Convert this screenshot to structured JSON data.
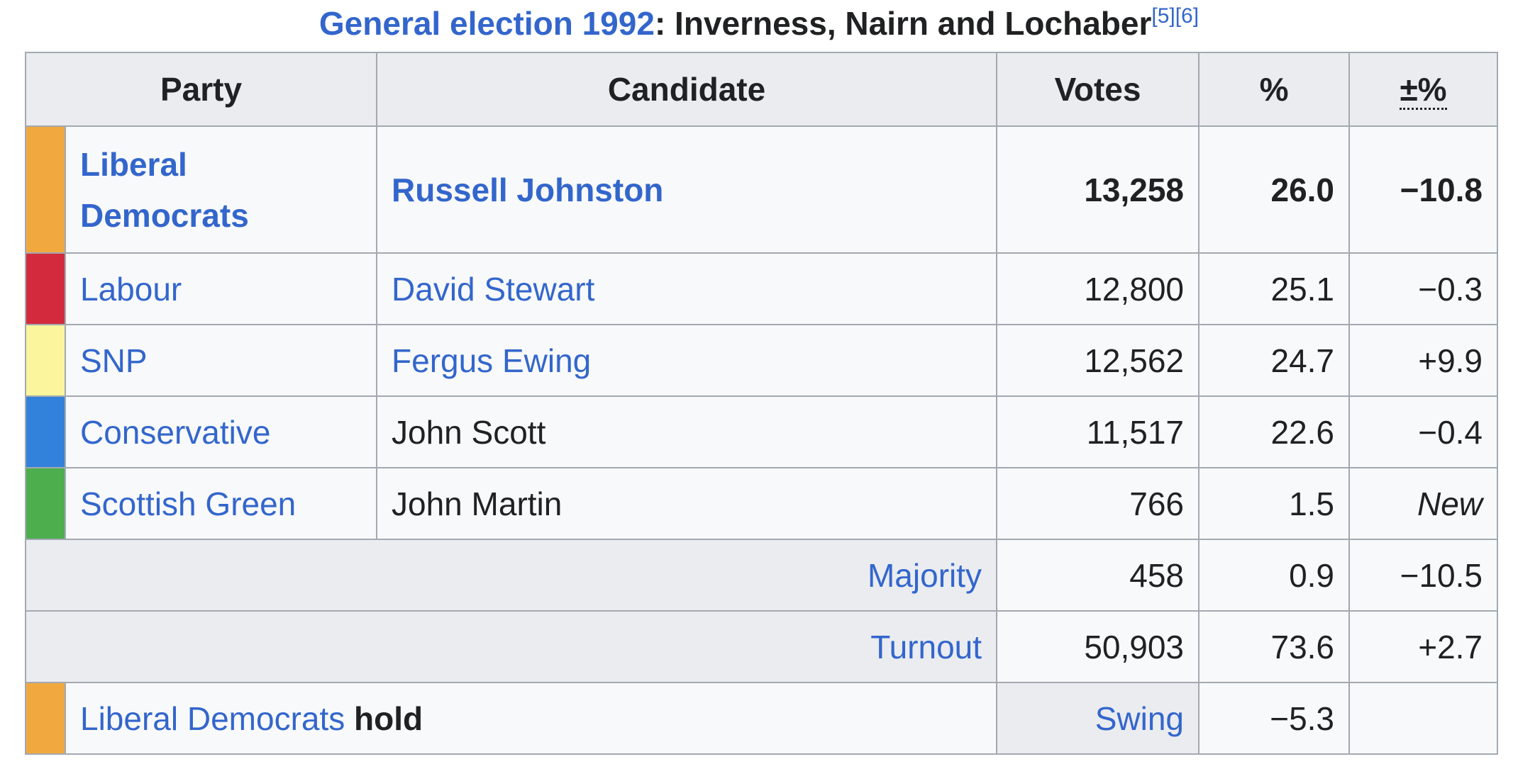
{
  "caption": {
    "link_text": "General election 1992",
    "rest_text": ": Inverness, Nairn and Lochaber",
    "refs": "[5][6]"
  },
  "headers": {
    "party": "Party",
    "candidate": "Candidate",
    "votes": "Votes",
    "percent": "%",
    "change": "±%"
  },
  "rows": [
    {
      "color": "#f0a83f",
      "party": "Liberal Democrats",
      "candidate": "Russell Johnston",
      "votes": "13,258",
      "percent": "26.0",
      "change": "−10.8"
    },
    {
      "color": "#d32b3d",
      "party": "Labour",
      "candidate": "David Stewart",
      "votes": "12,800",
      "percent": "25.1",
      "change": "−0.3"
    },
    {
      "color": "#fbf59d",
      "party": "SNP",
      "candidate": "Fergus Ewing",
      "votes": "12,562",
      "percent": "24.7",
      "change": "+9.9"
    },
    {
      "color": "#3282db",
      "party": "Conservative",
      "candidate": "John Scott",
      "votes": "11,517",
      "percent": "22.6",
      "change": "−0.4"
    },
    {
      "color": "#4cae4c",
      "party": "Scottish Green",
      "candidate": "John Martin",
      "votes": "766",
      "percent": "1.5",
      "change": "New"
    }
  ],
  "majority": {
    "label": "Majority",
    "votes": "458",
    "percent": "0.9",
    "change": "−10.5"
  },
  "turnout": {
    "label": "Turnout",
    "votes": "50,903",
    "percent": "73.6",
    "change": "+2.7"
  },
  "hold": {
    "color": "#f0a83f",
    "party": "Liberal Democrats",
    "word": "hold",
    "swing_label": "Swing",
    "swing_value": "−5.3"
  }
}
